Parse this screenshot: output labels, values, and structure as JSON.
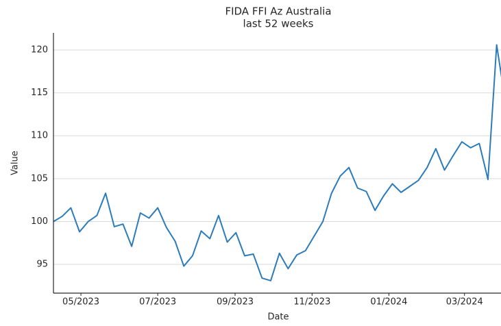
{
  "chart_data": {
    "type": "line",
    "title": "FIDA FFI Az Australia",
    "subtitle": "last 52 weeks",
    "x_label": "Date",
    "y_label": "Value",
    "series": [
      {
        "name": "Value",
        "color": "#2b7bba",
        "values": [
          100.0,
          100.6,
          101.6,
          98.8,
          100.0,
          100.7,
          103.3,
          99.4,
          99.7,
          97.1,
          101.0,
          100.4,
          101.6,
          99.3,
          97.7,
          94.8,
          96.0,
          98.9,
          98.0,
          100.7,
          97.6,
          98.7,
          96.0,
          96.2,
          93.4,
          93.1,
          96.3,
          94.5,
          96.1,
          96.6,
          98.3,
          100.0,
          103.3,
          105.3,
          106.3,
          103.9,
          103.5,
          101.3,
          103.0,
          104.4,
          103.4,
          104.1,
          104.8,
          106.3,
          108.5,
          106.0,
          107.7,
          109.3,
          108.6,
          109.1,
          104.9,
          120.6,
          114.0
        ]
      }
    ],
    "xlim": [
      0,
      51.5
    ],
    "xticks": [
      {
        "value": 3.16,
        "label": "05/2023"
      },
      {
        "value": 12.0,
        "label": "07/2023"
      },
      {
        "value": 20.9,
        "label": "09/2023"
      },
      {
        "value": 29.76,
        "label": "11/2023"
      },
      {
        "value": 38.6,
        "label": "01/2024"
      },
      {
        "value": 47.3,
        "label": "03/2024"
      }
    ],
    "ylim": [
      91.65,
      122.0
    ],
    "yticks": [
      95,
      100,
      105,
      110,
      115,
      120
    ],
    "grid": true
  }
}
